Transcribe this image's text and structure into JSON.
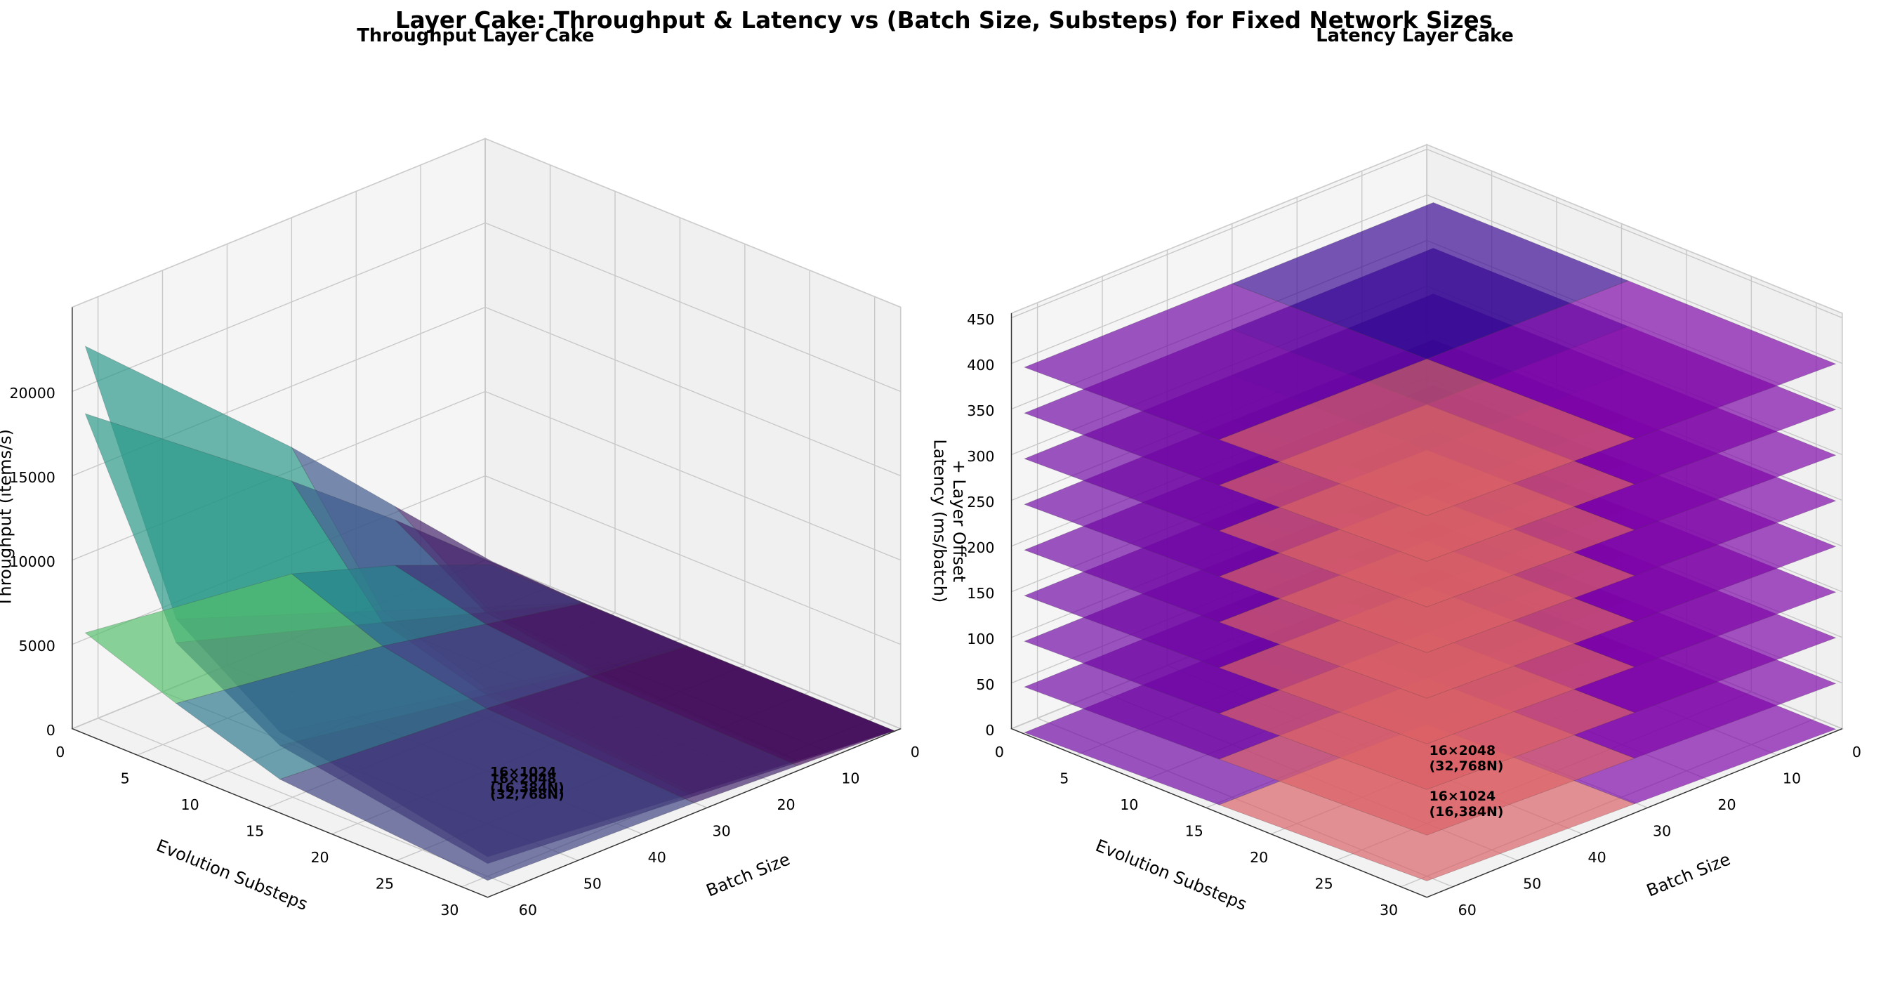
{
  "title": "Layer Cake: Throughput & Latency vs (Batch Size, Substeps) for Fixed Network Sizes",
  "chart_data": [
    {
      "type": "surface3d",
      "title": "Throughput Layer Cake",
      "xlabel": "Batch Size",
      "ylabel": "Evolution Substeps",
      "zlabel": [
        "Throughput (items/s)"
      ],
      "x": [
        1,
        16,
        32,
        64
      ],
      "y": [
        1,
        8,
        16,
        32
      ],
      "xlim": [
        0,
        64
      ],
      "ylim": [
        0,
        32
      ],
      "zlim": [
        0,
        25000
      ],
      "xticks": [
        0,
        10,
        20,
        30,
        40,
        50,
        60
      ],
      "yticks": [
        0,
        5,
        10,
        15,
        20,
        25,
        30
      ],
      "zticks": [
        0,
        5000,
        10000,
        15000,
        20000
      ],
      "colormap": "viridis",
      "layers": [
        {
          "name": [
            "16×1024",
            "(16,384N)"
          ],
          "values": [
            [
              400,
              6000,
              12000,
              23000
            ],
            [
              150,
              2200,
              4500,
              9000
            ],
            [
              80,
              1200,
              2400,
              4800
            ],
            [
              40,
              600,
              1200,
              2400
            ]
          ]
        },
        {
          "name": [
            "16×2048",
            "(32,768N)"
          ],
          "values": [
            [
              350,
              5200,
              10000,
              19000
            ],
            [
              130,
              1900,
              3800,
              7600
            ],
            [
              70,
              1000,
              2000,
              4000
            ],
            [
              35,
              500,
              1000,
              2000
            ]
          ]
        },
        {
          "values": [
            [
              200,
              2500,
              4500,
              6000
            ],
            [
              100,
              1200,
              2400,
              4000
            ],
            [
              50,
              600,
              1200,
              2000
            ],
            [
              25,
              300,
              600,
              1000
            ]
          ]
        }
      ]
    },
    {
      "type": "surface3d",
      "title": "Latency Layer Cake",
      "xlabel": "Batch Size",
      "ylabel": "Evolution Substeps",
      "zlabel": [
        "Latency (ms/batch)",
        "+ Layer Offset"
      ],
      "x": [
        1,
        32,
        64
      ],
      "y": [
        1,
        16,
        32
      ],
      "xlim": [
        0,
        64
      ],
      "ylim": [
        0,
        32
      ],
      "zlim": [
        0,
        455
      ],
      "xticks": [
        0,
        10,
        20,
        30,
        40,
        50,
        60
      ],
      "yticks": [
        0,
        5,
        10,
        15,
        20,
        25,
        30
      ],
      "zticks": [
        0,
        50,
        100,
        150,
        200,
        250,
        300,
        350,
        400,
        450
      ],
      "colormap": "plasma",
      "layers": [
        {
          "name": [
            "16×1024",
            "(16,384N)"
          ],
          "values": [
            [
              0.2,
              0.8,
              1.5
            ],
            [
              1.2,
              5,
              9
            ],
            [
              2.4,
              10,
              18
            ]
          ]
        },
        {
          "name": [
            "16×2048",
            "(32,768N)"
          ],
          "values": [
            [
              50.2,
              50.8,
              51.5
            ],
            [
              51.2,
              55,
              59
            ],
            [
              52.4,
              60,
              68
            ]
          ]
        },
        {
          "values": [
            [
              100.2,
              100.8,
              101.5
            ],
            [
              101.2,
              105,
              109
            ],
            [
              102.4,
              110,
              118
            ]
          ]
        },
        {
          "values": [
            [
              150.2,
              150.8,
              151.5
            ],
            [
              151.2,
              155,
              159
            ],
            [
              152.4,
              160,
              168
            ]
          ]
        },
        {
          "values": [
            [
              200.2,
              200.8,
              201.5
            ],
            [
              201.2,
              205,
              209
            ],
            [
              202.4,
              210,
              218
            ]
          ]
        },
        {
          "values": [
            [
              250.2,
              250.8,
              251.5
            ],
            [
              251.2,
              255,
              259
            ],
            [
              252.4,
              260,
              268
            ]
          ]
        },
        {
          "values": [
            [
              300.2,
              300.8,
              301.5
            ],
            [
              301.2,
              305,
              309
            ],
            [
              302.4,
              310,
              318
            ]
          ]
        },
        {
          "values": [
            [
              350.2,
              350.8,
              351.5
            ],
            [
              351.2,
              355,
              359
            ],
            [
              352.4,
              360,
              368
            ]
          ]
        },
        {
          "values": [
            [
              400.2,
              400.8,
              401.5
            ],
            [
              401.2,
              405,
              409
            ],
            [
              402.4,
              410,
              418
            ]
          ]
        }
      ]
    }
  ]
}
